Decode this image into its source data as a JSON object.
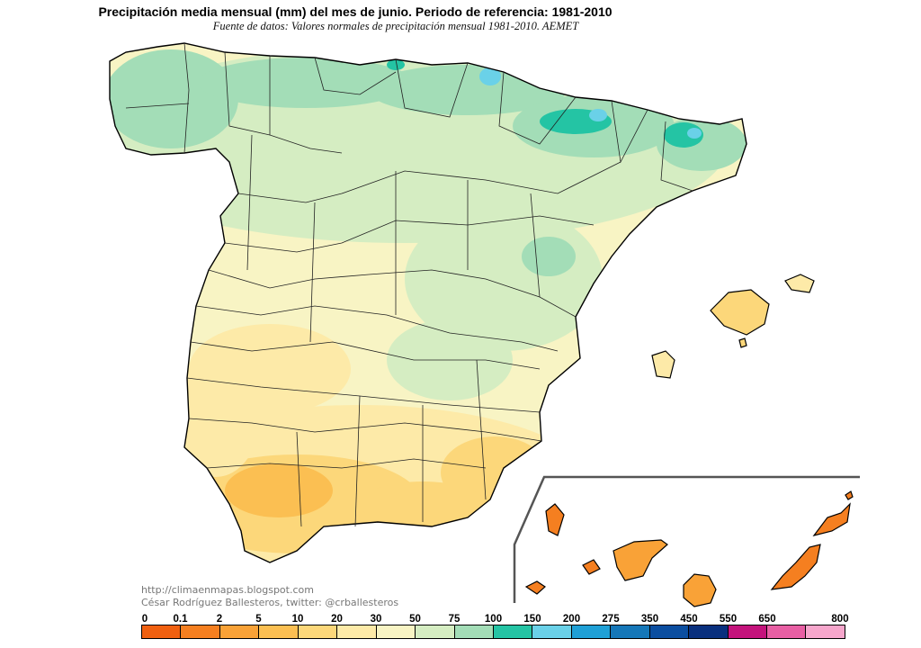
{
  "title": "Precipitación media mensual (mm) del mes de junio. Periodo de referencia: 1981-2010",
  "subtitle": "Fuente de datos: Valores normales de precipitación mensual 1981-2010. AEMET",
  "credits": {
    "blog": "http://climaenmapas.blogspot.com",
    "author": "César Rodríguez Ballesteros, twitter: @crballesteros"
  },
  "legend": {
    "labels": [
      "0",
      "0.1",
      "2",
      "5",
      "10",
      "20",
      "30",
      "50",
      "75",
      "100",
      "150",
      "200",
      "275",
      "350",
      "450",
      "550",
      "650",
      "800"
    ],
    "colors": [
      "#f06010",
      "#f57f20",
      "#f9a237",
      "#fbbf52",
      "#fcd77a",
      "#fdeaa8",
      "#f8f4c4",
      "#d5edc2",
      "#a3ddb7",
      "#24c4a4",
      "#6ad1e8",
      "#1fa0d6",
      "#1577b8",
      "#0b4ea0",
      "#09307e",
      "#c4137c",
      "#e85fa4",
      "#f6a6cc"
    ]
  },
  "map": {
    "region": "Península Ibérica (España) e Islas Baleares",
    "inset": "Islas Canarias"
  }
}
